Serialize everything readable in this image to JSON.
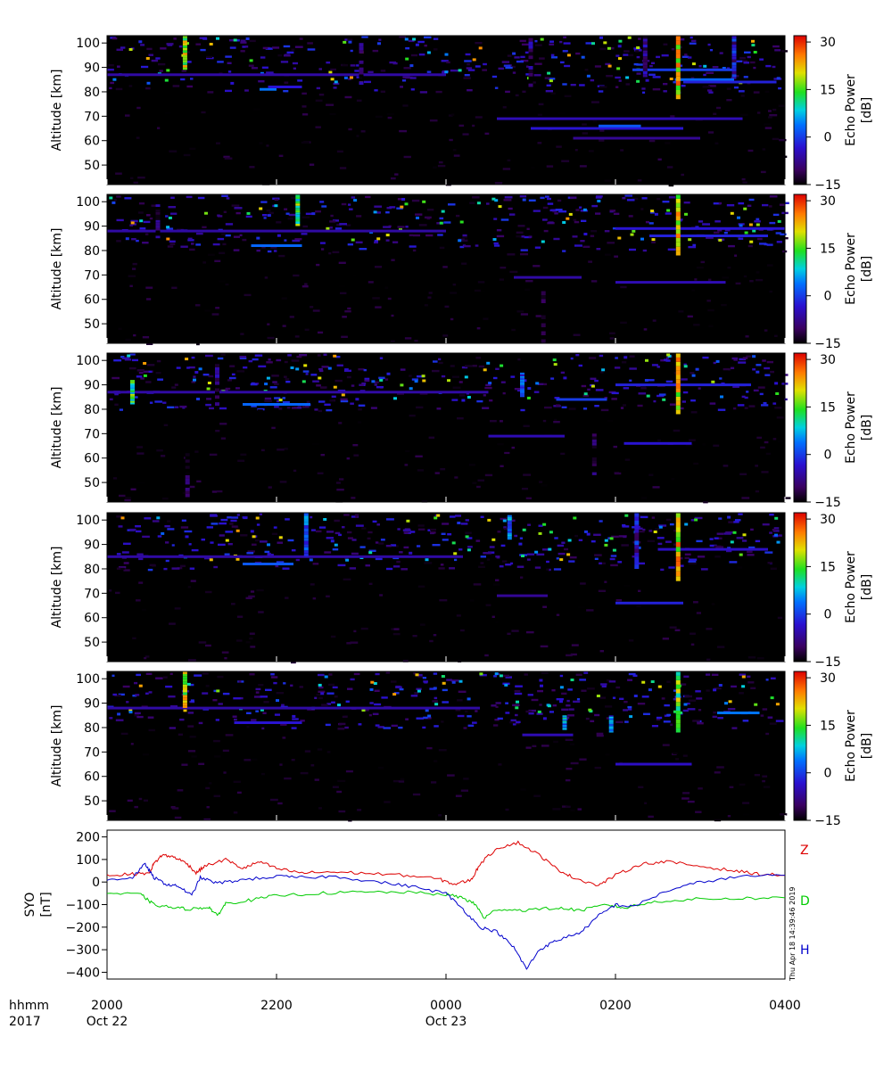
{
  "chart_data": [
    {
      "type": "heatmap",
      "panel": 1,
      "ylabel": "Altitude [km]",
      "yticks": [
        "50",
        "60",
        "70",
        "80",
        "90",
        "100"
      ],
      "ylim": [
        42,
        103
      ],
      "colorbar": {
        "label": "Echo Power [dB]",
        "ticks": [
          "30",
          "15",
          "0",
          "−15"
        ],
        "range": [
          -15,
          32
        ]
      },
      "features": [
        {
          "t0": 20.0,
          "t1": 24.0,
          "alt": 87.0,
          "db": -6
        },
        {
          "t0": 21.8,
          "t1": 22.0,
          "alt": 81.0,
          "db": 4
        },
        {
          "t0": 21.9,
          "t1": 22.3,
          "alt": 82.0,
          "db": -3
        },
        {
          "t0": 24.6,
          "t1": 27.5,
          "alt": 69.0,
          "db": -5
        },
        {
          "t0": 25.0,
          "t1": 26.8,
          "alt": 65.0,
          "db": -3
        },
        {
          "t0": 25.5,
          "t1": 27.0,
          "alt": 61.0,
          "db": -7
        },
        {
          "t0": 25.8,
          "t1": 26.3,
          "alt": 66.0,
          "db": 2
        },
        {
          "t0": 26.2,
          "t1": 27.4,
          "alt": 89.0,
          "db": 0
        },
        {
          "t0": 26.7,
          "t1": 27.4,
          "alt": 85.0,
          "db": 3
        },
        {
          "t0": 26.8,
          "t1": 27.9,
          "alt": 84.0,
          "db": -2
        }
      ],
      "columns": [
        {
          "t": 20.92,
          "a0": 89,
          "a1": 103,
          "db": 25
        },
        {
          "t": 26.74,
          "a0": 77,
          "a1": 103,
          "db": 28
        },
        {
          "t": 23.0,
          "a0": 80,
          "a1": 100,
          "db": -5
        },
        {
          "t": 25.0,
          "a0": 82,
          "a1": 102,
          "db": -3
        },
        {
          "t": 26.35,
          "a0": 86,
          "a1": 103,
          "db": 0
        },
        {
          "t": 27.4,
          "a0": 86,
          "a1": 103,
          "db": 3
        }
      ]
    },
    {
      "type": "heatmap",
      "panel": 2,
      "ylabel": "Altitude [km]",
      "yticks": [
        "50",
        "60",
        "70",
        "80",
        "90",
        "100"
      ],
      "ylim": [
        42,
        103
      ],
      "colorbar": {
        "label": "Echo Power [dB]",
        "ticks": [
          "30",
          "15",
          "0",
          "−15"
        ],
        "range": [
          -15,
          32
        ]
      },
      "features": [
        {
          "t0": 20.0,
          "t1": 24.0,
          "alt": 88.0,
          "db": -6
        },
        {
          "t0": 21.7,
          "t1": 22.3,
          "alt": 82.0,
          "db": 3
        },
        {
          "t0": 24.8,
          "t1": 25.6,
          "alt": 69.0,
          "db": -6
        },
        {
          "t0": 26.0,
          "t1": 27.3,
          "alt": 67.0,
          "db": -5
        },
        {
          "t0": 26.0,
          "t1": 28.0,
          "alt": 89.0,
          "db": -3
        },
        {
          "t0": 26.4,
          "t1": 27.8,
          "alt": 86.0,
          "db": -2
        }
      ],
      "columns": [
        {
          "t": 22.25,
          "a0": 90,
          "a1": 103,
          "db": 20
        },
        {
          "t": 26.74,
          "a0": 78,
          "a1": 103,
          "db": 28
        },
        {
          "t": 25.15,
          "a0": 42,
          "a1": 65,
          "db": -10
        },
        {
          "t": 20.6,
          "a0": 85,
          "a1": 100,
          "db": -4
        }
      ]
    },
    {
      "type": "heatmap",
      "panel": 3,
      "ylabel": "Altitude [km]",
      "yticks": [
        "50",
        "60",
        "70",
        "80",
        "90",
        "100"
      ],
      "ylim": [
        42,
        103
      ],
      "colorbar": {
        "label": "Echo Power [dB]",
        "ticks": [
          "30",
          "15",
          "0",
          "−15"
        ],
        "range": [
          -15,
          32
        ]
      },
      "features": [
        {
          "t0": 20.0,
          "t1": 24.5,
          "alt": 87.0,
          "db": -6
        },
        {
          "t0": 21.6,
          "t1": 22.4,
          "alt": 82.0,
          "db": 3
        },
        {
          "t0": 24.5,
          "t1": 25.4,
          "alt": 69.0,
          "db": -5
        },
        {
          "t0": 25.3,
          "t1": 25.9,
          "alt": 84.0,
          "db": 0
        },
        {
          "t0": 26.1,
          "t1": 26.9,
          "alt": 66.0,
          "db": -3
        },
        {
          "t0": 26.0,
          "t1": 27.6,
          "alt": 90.0,
          "db": -2
        }
      ],
      "columns": [
        {
          "t": 20.3,
          "a0": 82,
          "a1": 92,
          "db": 20
        },
        {
          "t": 21.3,
          "a0": 80,
          "a1": 100,
          "db": -4
        },
        {
          "t": 26.74,
          "a0": 78,
          "a1": 103,
          "db": 28
        },
        {
          "t": 25.75,
          "a0": 53,
          "a1": 70,
          "db": -6
        },
        {
          "t": 24.9,
          "a0": 85,
          "a1": 95,
          "db": 8
        },
        {
          "t": 20.95,
          "a0": 44,
          "a1": 62,
          "db": -8
        }
      ]
    },
    {
      "type": "heatmap",
      "panel": 4,
      "ylabel": "Altitude [km]",
      "yticks": [
        "50",
        "60",
        "70",
        "80",
        "90",
        "100"
      ],
      "ylim": [
        42,
        103
      ],
      "colorbar": {
        "label": "Echo Power [dB]",
        "ticks": [
          "30",
          "15",
          "0",
          "−15"
        ],
        "range": [
          -15,
          32
        ]
      },
      "features": [
        {
          "t0": 20.0,
          "t1": 24.2,
          "alt": 85.0,
          "db": -6
        },
        {
          "t0": 21.6,
          "t1": 22.2,
          "alt": 82.0,
          "db": 2
        },
        {
          "t0": 24.6,
          "t1": 25.2,
          "alt": 69.0,
          "db": -7
        },
        {
          "t0": 26.0,
          "t1": 26.8,
          "alt": 66.0,
          "db": -2
        },
        {
          "t0": 26.5,
          "t1": 27.8,
          "alt": 88.0,
          "db": -4
        }
      ],
      "columns": [
        {
          "t": 26.74,
          "a0": 75,
          "a1": 103,
          "db": 28
        },
        {
          "t": 26.25,
          "a0": 80,
          "a1": 103,
          "db": 2
        },
        {
          "t": 22.35,
          "a0": 85,
          "a1": 103,
          "db": 10
        },
        {
          "t": 24.75,
          "a0": 92,
          "a1": 102,
          "db": 12
        }
      ]
    },
    {
      "type": "heatmap",
      "panel": 5,
      "ylabel": "Altitude [km]",
      "yticks": [
        "50",
        "60",
        "70",
        "80",
        "90",
        "100"
      ],
      "ylim": [
        42,
        103
      ],
      "colorbar": {
        "label": "Echo Power [dB]",
        "ticks": [
          "30",
          "15",
          "0",
          "−15"
        ],
        "range": [
          -15,
          32
        ]
      },
      "features": [
        {
          "t0": 20.0,
          "t1": 24.4,
          "alt": 88.0,
          "db": -6
        },
        {
          "t0": 21.5,
          "t1": 22.3,
          "alt": 82.0,
          "db": -3
        },
        {
          "t0": 24.9,
          "t1": 25.5,
          "alt": 77.0,
          "db": -5
        },
        {
          "t0": 26.0,
          "t1": 26.9,
          "alt": 65.0,
          "db": -4
        },
        {
          "t0": 27.2,
          "t1": 27.7,
          "alt": 86.0,
          "db": 4
        }
      ],
      "columns": [
        {
          "t": 20.92,
          "a0": 88,
          "a1": 103,
          "db": 26
        },
        {
          "t": 26.74,
          "a0": 78,
          "a1": 103,
          "db": 22
        },
        {
          "t": 25.95,
          "a0": 78,
          "a1": 85,
          "db": 10
        },
        {
          "t": 25.4,
          "a0": 79,
          "a1": 85,
          "db": 12
        }
      ]
    },
    {
      "type": "line",
      "panel": 6,
      "ylabel": "SYO [nT]",
      "ylim": [
        -430,
        230
      ],
      "yticks": [
        "200",
        "100",
        "0",
        "−100",
        "−200",
        "−300",
        "−400"
      ],
      "x_unit": "hours from 2000 UT, Oct 22, 2017",
      "series": [
        {
          "name": "Z",
          "color": "#dd0000",
          "points": [
            [
              0,
              30
            ],
            [
              0.3,
              35
            ],
            [
              0.5,
              40
            ],
            [
              0.55,
              80
            ],
            [
              0.65,
              120
            ],
            [
              0.8,
              110
            ],
            [
              0.95,
              80
            ],
            [
              1.05,
              40
            ],
            [
              1.15,
              70
            ],
            [
              1.4,
              100
            ],
            [
              1.6,
              60
            ],
            [
              1.8,
              90
            ],
            [
              2.0,
              60
            ],
            [
              2.3,
              40
            ],
            [
              2.6,
              45
            ],
            [
              3.0,
              40
            ],
            [
              3.5,
              30
            ],
            [
              3.9,
              15
            ],
            [
              4.1,
              -10
            ],
            [
              4.3,
              10
            ],
            [
              4.4,
              80
            ],
            [
              4.6,
              150
            ],
            [
              4.85,
              175
            ],
            [
              5.1,
              120
            ],
            [
              5.3,
              60
            ],
            [
              5.5,
              20
            ],
            [
              5.8,
              -15
            ],
            [
              6.0,
              30
            ],
            [
              6.3,
              80
            ],
            [
              6.6,
              90
            ],
            [
              7.0,
              70
            ],
            [
              7.4,
              50
            ],
            [
              7.7,
              35
            ],
            [
              8.0,
              30
            ]
          ]
        },
        {
          "name": "D",
          "color": "#00cc00",
          "points": [
            [
              0,
              -50
            ],
            [
              0.4,
              -55
            ],
            [
              0.55,
              -100
            ],
            [
              0.8,
              -115
            ],
            [
              1.0,
              -120
            ],
            [
              1.2,
              -110
            ],
            [
              1.3,
              -150
            ],
            [
              1.4,
              -95
            ],
            [
              1.7,
              -80
            ],
            [
              2.0,
              -60
            ],
            [
              2.5,
              -50
            ],
            [
              3.0,
              -45
            ],
            [
              3.5,
              -45
            ],
            [
              4.0,
              -55
            ],
            [
              4.2,
              -70
            ],
            [
              4.35,
              -100
            ],
            [
              4.45,
              -160
            ],
            [
              4.6,
              -120
            ],
            [
              4.9,
              -125
            ],
            [
              5.3,
              -115
            ],
            [
              5.6,
              -125
            ],
            [
              5.9,
              -100
            ],
            [
              6.1,
              -115
            ],
            [
              6.5,
              -85
            ],
            [
              7.0,
              -75
            ],
            [
              7.5,
              -72
            ],
            [
              8.0,
              -70
            ]
          ]
        },
        {
          "name": "H",
          "color": "#0000cc",
          "points": [
            [
              0,
              10
            ],
            [
              0.3,
              20
            ],
            [
              0.45,
              80
            ],
            [
              0.55,
              20
            ],
            [
              0.7,
              -10
            ],
            [
              0.85,
              -20
            ],
            [
              1.0,
              -60
            ],
            [
              1.1,
              20
            ],
            [
              1.3,
              -5
            ],
            [
              1.6,
              10
            ],
            [
              2.0,
              25
            ],
            [
              2.3,
              20
            ],
            [
              2.7,
              25
            ],
            [
              3.2,
              0
            ],
            [
              3.6,
              -20
            ],
            [
              4.0,
              -50
            ],
            [
              4.2,
              -120
            ],
            [
              4.4,
              -200
            ],
            [
              4.6,
              -220
            ],
            [
              4.8,
              -290
            ],
            [
              4.95,
              -385
            ],
            [
              5.1,
              -300
            ],
            [
              5.3,
              -260
            ],
            [
              5.6,
              -220
            ],
            [
              5.8,
              -150
            ],
            [
              6.0,
              -100
            ],
            [
              6.2,
              -110
            ],
            [
              6.6,
              -40
            ],
            [
              7.0,
              0
            ],
            [
              7.5,
              25
            ],
            [
              8.0,
              30
            ]
          ]
        }
      ]
    }
  ],
  "xaxis": {
    "row_label_1": "hhmm",
    "row_label_2": "2017",
    "ticks": [
      {
        "t": 0,
        "time": "2000",
        "date": "Oct 22"
      },
      {
        "t": 2,
        "time": "2200",
        "date": ""
      },
      {
        "t": 4,
        "time": "0000",
        "date": "Oct 23"
      },
      {
        "t": 6,
        "time": "0200",
        "date": ""
      },
      {
        "t": 8,
        "time": "0400",
        "date": ""
      }
    ]
  },
  "timestamp": "Thu Apr 18 14:39:46 2019"
}
